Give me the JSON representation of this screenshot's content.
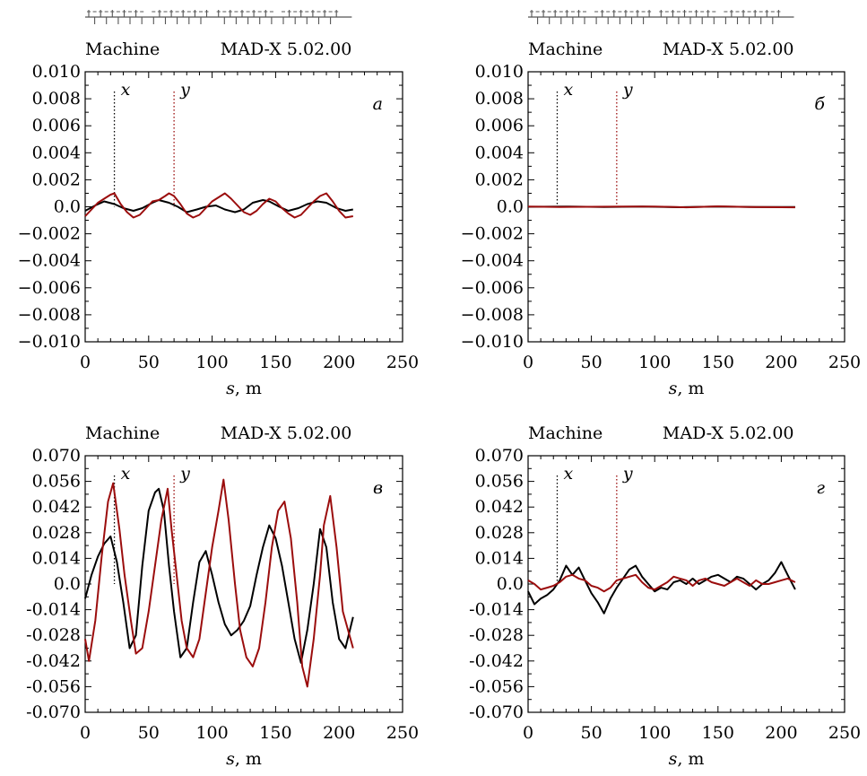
{
  "figure": {
    "colors": {
      "x_series": "#000000",
      "y_series": "#9b0d0d",
      "axes": "#000000"
    },
    "panels": [
      {
        "id": "a",
        "panel_label": "а",
        "header_left": "Machine",
        "header_right": "MAD-X 5.02.00",
        "show_lattice": true,
        "marker_x_label": "x",
        "marker_y_label": "y",
        "xlabel_var": "s",
        "xlabel_unit": ", m",
        "chart_data": {
          "type": "line",
          "xlim": [
            0,
            250
          ],
          "ylim": [
            -0.01,
            0.01
          ],
          "xticks": [
            0,
            50,
            100,
            150,
            200,
            250
          ],
          "yticks": [
            0.01,
            0.008,
            0.006,
            0.004,
            0.002,
            0.0,
            -0.002,
            -0.004,
            -0.006,
            -0.008,
            -0.01
          ],
          "ytick_labels": [
            "0.010",
            "0.008",
            "0.006",
            "0.004",
            "0.002",
            "0.0",
            "−0.002",
            "−0.004",
            "−0.006",
            "−0.008",
            "−0.010"
          ],
          "markers": [
            {
              "s": 23,
              "series": "x",
              "color": "#000000"
            },
            {
              "s": 70,
              "series": "y",
              "color": "#9b0d0d"
            }
          ],
          "series": [
            {
              "id": "x",
              "color": "#000000",
              "x": [
                0,
                8,
                15,
                23,
                30,
                38,
                45,
                53,
                58,
                66,
                73,
                80,
                88,
                95,
                103,
                110,
                118,
                125,
                132,
                140,
                145,
                153,
                160,
                168,
                175,
                183,
                190,
                198,
                205,
                211
              ],
              "y": [
                -0.0003,
                0.0001,
                0.0004,
                0.0002,
                -0.0001,
                -0.0003,
                -0.0001,
                0.0003,
                0.0005,
                0.0003,
                0.0,
                -0.0004,
                -0.0002,
                0.0,
                0.0001,
                -0.0002,
                -0.0004,
                -0.0002,
                0.0003,
                0.0005,
                0.0004,
                0.0,
                -0.0003,
                -0.0001,
                0.0002,
                0.0004,
                0.0003,
                -0.0001,
                -0.0003,
                -0.0002
              ]
            },
            {
              "id": "y",
              "color": "#9b0d0d",
              "x": [
                0,
                5,
                10,
                15,
                20,
                23,
                28,
                33,
                38,
                43,
                48,
                53,
                58,
                63,
                66,
                70,
                75,
                80,
                85,
                90,
                95,
                100,
                105,
                110,
                115,
                120,
                125,
                130,
                135,
                140,
                145,
                150,
                155,
                160,
                165,
                170,
                175,
                180,
                185,
                190,
                195,
                200,
                205,
                211
              ],
              "y": [
                -0.0007,
                -0.0002,
                0.0003,
                0.0006,
                0.0009,
                0.001,
                0.0002,
                -0.0004,
                -0.0008,
                -0.0006,
                -0.0001,
                0.0004,
                0.0005,
                0.0008,
                0.001,
                0.0008,
                0.0002,
                -0.0005,
                -0.0008,
                -0.0006,
                -0.0001,
                0.0004,
                0.0007,
                0.001,
                0.0006,
                0.0001,
                -0.0004,
                -0.0006,
                -0.0003,
                0.0002,
                0.0006,
                0.0004,
                -0.0001,
                -0.0005,
                -0.0008,
                -0.0006,
                -0.0001,
                0.0004,
                0.0008,
                0.001,
                0.0004,
                -0.0003,
                -0.0008,
                -0.0007
              ]
            }
          ]
        }
      },
      {
        "id": "b",
        "panel_label": "б",
        "header_left": "Machine",
        "header_right": "MAD-X 5.02.00",
        "show_lattice": true,
        "marker_x_label": "x",
        "marker_y_label": "y",
        "xlabel_var": "s",
        "xlabel_unit": ", m",
        "chart_data": {
          "type": "line",
          "xlim": [
            0,
            250
          ],
          "ylim": [
            -0.01,
            0.01
          ],
          "xticks": [
            0,
            50,
            100,
            150,
            200,
            250
          ],
          "yticks": [
            0.01,
            0.008,
            0.006,
            0.004,
            0.002,
            0.0,
            -0.002,
            -0.004,
            -0.006,
            -0.008,
            -0.01
          ],
          "ytick_labels": [
            "0.010",
            "0.008",
            "0.006",
            "0.004",
            "0.002",
            "0.0",
            "−0.002",
            "−0.004",
            "−0.006",
            "−0.008",
            "−0.010"
          ],
          "markers": [
            {
              "s": 23,
              "series": "x",
              "color": "#000000"
            },
            {
              "s": 70,
              "series": "y",
              "color": "#9b0d0d"
            }
          ],
          "series": [
            {
              "id": "x",
              "color": "#000000",
              "x": [
                0,
                30,
                60,
                90,
                120,
                150,
                180,
                211
              ],
              "y": [
                0.0,
                2e-05,
                -1e-05,
                1e-05,
                -3e-05,
                2e-05,
                -1e-05,
                -2e-05
              ]
            },
            {
              "id": "y",
              "color": "#9b0d0d",
              "x": [
                0,
                25,
                50,
                75,
                100,
                125,
                150,
                175,
                200,
                211
              ],
              "y": [
                2e-05,
                -1e-05,
                0.0,
                1e-05,
                2e-05,
                -4e-05,
                3e-05,
                -2e-05,
                -3e-05,
                -4e-05
              ]
            }
          ]
        }
      },
      {
        "id": "c",
        "panel_label": "в",
        "header_left": "Machine",
        "header_right": "MAD-X 5.02.00",
        "show_lattice": false,
        "marker_x_label": "x",
        "marker_y_label": "y",
        "xlabel_var": "s",
        "xlabel_unit": ", m",
        "chart_data": {
          "type": "line",
          "xlim": [
            0,
            250
          ],
          "ylim": [
            -0.07,
            0.07
          ],
          "xticks": [
            0,
            50,
            100,
            150,
            200,
            250
          ],
          "yticks": [
            0.07,
            0.056,
            0.042,
            0.028,
            0.014,
            0.0,
            -0.014,
            -0.028,
            -0.042,
            -0.056,
            -0.07
          ],
          "ytick_labels": [
            "0.070",
            "0.056",
            "0.042",
            "0.028",
            "0.014",
            "0.0",
            "-0.014",
            "-0.028",
            "-0.042",
            "-0.056",
            "-0.070"
          ],
          "markers": [
            {
              "s": 23,
              "series": "x",
              "color": "#000000"
            },
            {
              "s": 70,
              "series": "y",
              "color": "#9b0d0d"
            }
          ],
          "series": [
            {
              "id": "x",
              "color": "#000000",
              "x": [
                0,
                5,
                10,
                15,
                20,
                25,
                30,
                35,
                40,
                45,
                50,
                55,
                58,
                62,
                66,
                70,
                75,
                80,
                85,
                90,
                95,
                100,
                105,
                110,
                115,
                120,
                125,
                130,
                135,
                140,
                145,
                150,
                155,
                160,
                165,
                170,
                175,
                180,
                185,
                190,
                195,
                200,
                205,
                211
              ],
              "y": [
                -0.008,
                0.005,
                0.015,
                0.022,
                0.026,
                0.012,
                -0.01,
                -0.035,
                -0.028,
                0.01,
                0.04,
                0.05,
                0.052,
                0.04,
                0.01,
                -0.015,
                -0.04,
                -0.035,
                -0.01,
                0.012,
                0.018,
                0.005,
                -0.01,
                -0.022,
                -0.028,
                -0.025,
                -0.02,
                -0.012,
                0.005,
                0.02,
                0.032,
                0.025,
                0.01,
                -0.01,
                -0.03,
                -0.043,
                -0.025,
                0.0,
                0.03,
                0.02,
                -0.01,
                -0.03,
                -0.035,
                -0.018
              ]
            },
            {
              "id": "y",
              "color": "#9b0d0d",
              "x": [
                0,
                3,
                8,
                13,
                18,
                22,
                27,
                31,
                36,
                40,
                45,
                50,
                55,
                60,
                65,
                68,
                72,
                76,
                80,
                85,
                90,
                95,
                100,
                105,
                109,
                113,
                118,
                122,
                127,
                132,
                137,
                142,
                147,
                152,
                157,
                162,
                167,
                171,
                175,
                180,
                185,
                188,
                193,
                198,
                203,
                211
              ],
              "y": [
                -0.03,
                -0.042,
                -0.02,
                0.015,
                0.045,
                0.055,
                0.03,
                0.005,
                -0.02,
                -0.038,
                -0.035,
                -0.015,
                0.01,
                0.035,
                0.052,
                0.03,
                0.005,
                -0.02,
                -0.035,
                -0.04,
                -0.03,
                -0.005,
                0.02,
                0.04,
                0.057,
                0.035,
                0.0,
                -0.025,
                -0.04,
                -0.045,
                -0.035,
                -0.01,
                0.02,
                0.04,
                0.045,
                0.025,
                -0.01,
                -0.045,
                -0.056,
                -0.03,
                0.005,
                0.032,
                0.048,
                0.02,
                -0.015,
                -0.035
              ]
            }
          ]
        }
      },
      {
        "id": "d",
        "panel_label": "г",
        "header_left": "Machine",
        "header_right": "MAD-X 5.02.00",
        "show_lattice": false,
        "marker_x_label": "x",
        "marker_y_label": "y",
        "xlabel_var": "s",
        "xlabel_unit": ", m",
        "chart_data": {
          "type": "line",
          "xlim": [
            0,
            250
          ],
          "ylim": [
            -0.07,
            0.07
          ],
          "xticks": [
            0,
            50,
            100,
            150,
            200,
            250
          ],
          "yticks": [
            0.07,
            0.056,
            0.042,
            0.028,
            0.014,
            0.0,
            -0.014,
            -0.028,
            -0.042,
            -0.056,
            -0.07
          ],
          "ytick_labels": [
            "0.070",
            "0.056",
            "0.042",
            "0.028",
            "0.014",
            "0.0",
            "-0.014",
            "-0.028",
            "-0.042",
            "-0.056",
            "-0.070"
          ],
          "markers": [
            {
              "s": 23,
              "series": "x",
              "color": "#000000"
            },
            {
              "s": 70,
              "series": "y",
              "color": "#9b0d0d"
            }
          ],
          "series": [
            {
              "id": "x",
              "color": "#000000",
              "x": [
                0,
                5,
                10,
                15,
                20,
                25,
                30,
                35,
                40,
                45,
                50,
                55,
                60,
                65,
                70,
                75,
                80,
                85,
                90,
                95,
                100,
                105,
                110,
                115,
                120,
                125,
                130,
                135,
                140,
                145,
                150,
                155,
                160,
                165,
                170,
                175,
                180,
                185,
                190,
                195,
                200,
                205,
                211
              ],
              "y": [
                -0.004,
                -0.011,
                -0.008,
                -0.006,
                -0.003,
                0.002,
                0.01,
                0.005,
                0.009,
                0.002,
                -0.005,
                -0.01,
                -0.016,
                -0.008,
                -0.002,
                0.003,
                0.008,
                0.01,
                0.004,
                0.0,
                -0.004,
                -0.002,
                -0.003,
                0.001,
                0.002,
                0.0,
                0.003,
                0.0,
                0.002,
                0.004,
                0.005,
                0.003,
                0.001,
                0.004,
                0.003,
                0.0,
                -0.003,
                0.0,
                0.002,
                0.006,
                0.012,
                0.005,
                -0.003
              ]
            },
            {
              "id": "y",
              "color": "#9b0d0d",
              "x": [
                0,
                5,
                10,
                15,
                20,
                25,
                30,
                35,
                40,
                45,
                50,
                55,
                60,
                65,
                70,
                75,
                80,
                85,
                90,
                95,
                100,
                105,
                110,
                115,
                120,
                125,
                130,
                135,
                140,
                145,
                150,
                155,
                160,
                165,
                170,
                175,
                180,
                185,
                190,
                195,
                200,
                205,
                211
              ],
              "y": [
                0.002,
                0.0,
                -0.003,
                -0.002,
                -0.001,
                0.001,
                0.004,
                0.005,
                0.003,
                0.002,
                -0.001,
                -0.002,
                -0.004,
                -0.002,
                0.002,
                0.003,
                0.004,
                0.005,
                0.001,
                -0.002,
                -0.003,
                -0.001,
                0.001,
                0.004,
                0.003,
                0.002,
                -0.001,
                0.002,
                0.003,
                0.001,
                0.0,
                -0.001,
                0.001,
                0.003,
                0.001,
                -0.001,
                0.002,
                0.0,
                0.0,
                0.001,
                0.002,
                0.003,
                0.001
              ]
            }
          ]
        }
      }
    ]
  }
}
